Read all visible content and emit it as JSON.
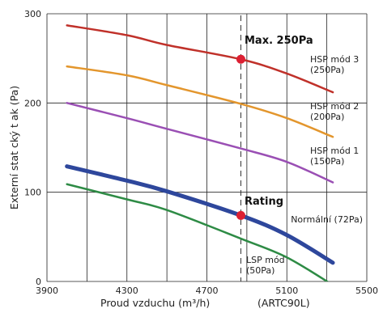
{
  "chart_data": {
    "type": "line",
    "xlabel": "Proud vzduchu (m³/h)",
    "xlabel_suffix": "(ARTC90L)",
    "ylabel": "Externí stat cký t ak (Pa)",
    "xlim": [
      3900,
      5500
    ],
    "ylim": [
      0,
      300
    ],
    "xticks": [
      3900,
      4300,
      4700,
      5100,
      5500
    ],
    "yticks": [
      0,
      100,
      200,
      300
    ],
    "grid": true,
    "series": [
      {
        "label_lines": [
          "HSP mód 3",
          "(250Pa)"
        ],
        "color": "#c0312a",
        "stroke": 2.5,
        "points": [
          [
            4000,
            287
          ],
          [
            4300,
            276
          ],
          [
            4500,
            265
          ],
          [
            4870,
            249
          ],
          [
            5100,
            233
          ],
          [
            5330,
            212
          ]
        ]
      },
      {
        "label_lines": [
          "HSP mód 2",
          "(200Pa)"
        ],
        "color": "#e3962d",
        "stroke": 2.5,
        "points": [
          [
            4000,
            241
          ],
          [
            4300,
            231
          ],
          [
            4500,
            220
          ],
          [
            4870,
            199
          ],
          [
            5100,
            183
          ],
          [
            5330,
            162
          ]
        ]
      },
      {
        "label_lines": [
          "HSP mód 1",
          "(150Pa)"
        ],
        "color": "#9a4fb4",
        "stroke": 2.5,
        "points": [
          [
            4000,
            200
          ],
          [
            4300,
            183
          ],
          [
            4500,
            171
          ],
          [
            4870,
            149
          ],
          [
            5100,
            134
          ],
          [
            5330,
            111
          ]
        ]
      },
      {
        "label_lines": [
          "Normální (72Pa)"
        ],
        "color": "#2e479c",
        "stroke": 5,
        "points": [
          [
            4000,
            129
          ],
          [
            4300,
            113
          ],
          [
            4500,
            101
          ],
          [
            4870,
            74
          ],
          [
            5100,
            52
          ],
          [
            5330,
            21
          ]
        ]
      },
      {
        "label_lines": [
          "LSP mód",
          "(50Pa)"
        ],
        "color": "#2e8b45",
        "stroke": 2.5,
        "points": [
          [
            4000,
            109
          ],
          [
            4300,
            92
          ],
          [
            4500,
            80
          ],
          [
            4870,
            48
          ],
          [
            5100,
            27
          ],
          [
            5330,
            -4
          ]
        ]
      }
    ],
    "reference_line": {
      "x": 4870,
      "style": "dashed"
    },
    "markers": [
      {
        "label": "Max. 250Pa",
        "x": 4870,
        "y": 249,
        "color": "#dc2033"
      },
      {
        "label": "Rating",
        "x": 4870,
        "y": 74,
        "color": "#dc2033"
      }
    ]
  }
}
